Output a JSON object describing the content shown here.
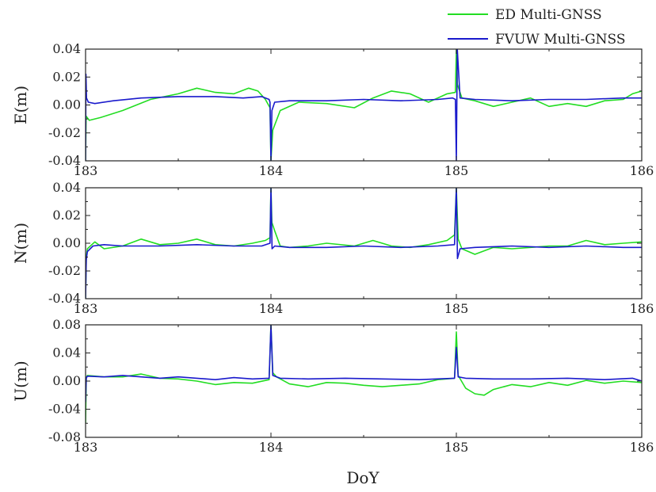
{
  "chart_data": {
    "type": "line",
    "xlabel": "DoY",
    "xlim": [
      183,
      186
    ],
    "xticks": [
      "183",
      "184",
      "185",
      "186"
    ],
    "legend_position": "top-right",
    "legend": [
      {
        "name": "ED Multi-GNSS",
        "color": "#22dd22"
      },
      {
        "name": "FVUW Multi-GNSS",
        "color": "#1a1acc"
      }
    ],
    "panels": [
      {
        "ylabel": "E(m)",
        "ylim": [
          -0.04,
          0.04
        ],
        "yticks": [
          "0.04",
          "0.02",
          "0.00",
          "-0.02",
          "-0.04"
        ],
        "series": [
          {
            "name": "ED Multi-GNSS",
            "color": "#22dd22",
            "x": [
              183.0,
              183.003,
              183.02,
              183.08,
              183.2,
              183.35,
              183.5,
              183.6,
              183.7,
              183.8,
              183.88,
              183.93,
              183.97,
              183.995,
              184.0,
              184.01,
              184.05,
              184.15,
              184.3,
              184.45,
              184.55,
              184.65,
              184.75,
              184.85,
              184.95,
              184.995,
              185.0,
              185.005,
              185.03,
              185.1,
              185.2,
              185.3,
              185.4,
              185.5,
              185.6,
              185.7,
              185.8,
              185.9,
              185.95,
              186.0
            ],
            "y": [
              -0.04,
              -0.008,
              -0.011,
              -0.009,
              -0.004,
              0.004,
              0.008,
              0.012,
              0.009,
              0.008,
              0.012,
              0.01,
              0.004,
              -0.002,
              -0.04,
              -0.018,
              -0.004,
              0.002,
              0.001,
              -0.002,
              0.005,
              0.01,
              0.008,
              0.002,
              0.008,
              0.009,
              0.04,
              0.015,
              0.005,
              0.003,
              -0.001,
              0.002,
              0.005,
              -0.001,
              0.001,
              -0.001,
              0.003,
              0.004,
              0.008,
              0.01
            ]
          },
          {
            "name": "FVUW Multi-GNSS",
            "color": "#1a1acc",
            "x": [
              183.0,
              183.002,
              183.005,
              183.015,
              183.05,
              183.15,
              183.3,
              183.5,
              183.7,
              183.85,
              183.95,
              183.99,
              183.995,
              184.0,
              184.005,
              184.02,
              184.1,
              184.3,
              184.5,
              184.7,
              184.9,
              184.98,
              184.995,
              185.0,
              185.005,
              185.02,
              185.1,
              185.3,
              185.5,
              185.7,
              185.9,
              186.0
            ],
            "y": [
              -0.04,
              0.022,
              0.005,
              0.002,
              0.001,
              0.003,
              0.005,
              0.006,
              0.006,
              0.005,
              0.006,
              0.004,
              0.002,
              -0.04,
              -0.004,
              0.002,
              0.003,
              0.003,
              0.004,
              0.003,
              0.004,
              0.005,
              0.004,
              -0.04,
              0.04,
              0.005,
              0.004,
              0.003,
              0.004,
              0.004,
              0.005,
              0.005
            ]
          }
        ]
      },
      {
        "ylabel": "N(m)",
        "ylim": [
          -0.04,
          0.04
        ],
        "yticks": [
          "0.04",
          "0.02",
          "0.00",
          "-0.02",
          "-0.04"
        ],
        "series": [
          {
            "name": "ED Multi-GNSS",
            "color": "#22dd22",
            "x": [
              183.0,
              183.004,
              183.01,
              183.05,
              183.1,
              183.2,
              183.3,
              183.4,
              183.5,
              183.6,
              183.7,
              183.8,
              183.9,
              183.97,
              183.995,
              184.0,
              184.005,
              184.02,
              184.05,
              184.1,
              184.2,
              184.3,
              184.45,
              184.55,
              184.65,
              184.75,
              184.85,
              184.95,
              184.99,
              185.0,
              185.01,
              185.03,
              185.1,
              185.2,
              185.3,
              185.4,
              185.5,
              185.6,
              185.7,
              185.8,
              185.9,
              186.0
            ],
            "y": [
              -0.04,
              -0.01,
              -0.004,
              0.001,
              -0.004,
              -0.002,
              0.003,
              -0.001,
              0.0,
              0.003,
              -0.001,
              -0.002,
              0.0,
              0.002,
              0.004,
              0.04,
              0.015,
              0.009,
              -0.002,
              -0.003,
              -0.002,
              0.0,
              -0.002,
              0.002,
              -0.002,
              -0.003,
              -0.001,
              0.002,
              0.006,
              0.04,
              0.003,
              -0.004,
              -0.008,
              -0.003,
              -0.004,
              -0.003,
              -0.002,
              -0.002,
              0.002,
              -0.001,
              0.0,
              0.001
            ]
          },
          {
            "name": "FVUW Multi-GNSS",
            "color": "#1a1acc",
            "x": [
              183.0,
              183.004,
              183.01,
              183.04,
              183.1,
              183.2,
              183.4,
              183.6,
              183.8,
              183.95,
              183.995,
              184.0,
              184.006,
              184.02,
              184.1,
              184.3,
              184.5,
              184.7,
              184.9,
              184.99,
              185.0,
              185.006,
              185.02,
              185.1,
              185.3,
              185.5,
              185.7,
              185.9,
              186.0
            ],
            "y": [
              -0.04,
              -0.012,
              -0.006,
              -0.002,
              -0.001,
              -0.002,
              -0.002,
              -0.001,
              -0.002,
              -0.002,
              0.0,
              0.04,
              -0.004,
              -0.002,
              -0.003,
              -0.003,
              -0.002,
              -0.003,
              -0.002,
              -0.001,
              0.04,
              -0.011,
              -0.004,
              -0.003,
              -0.002,
              -0.003,
              -0.002,
              -0.003,
              -0.003
            ]
          }
        ]
      },
      {
        "ylabel": "U(m)",
        "ylim": [
          -0.08,
          0.08
        ],
        "yticks": [
          "0.08",
          "0.04",
          "0.00",
          "-0.04",
          "-0.08"
        ],
        "series": [
          {
            "name": "ED Multi-GNSS",
            "color": "#22dd22",
            "x": [
              183.0,
              183.004,
              183.01,
              183.1,
              183.2,
              183.3,
              183.4,
              183.5,
              183.6,
              183.7,
              183.8,
              183.9,
              183.99,
              184.0,
              184.01,
              184.03,
              184.1,
              184.2,
              184.3,
              184.4,
              184.5,
              184.6,
              184.7,
              184.8,
              184.9,
              184.99,
              185.0,
              185.01,
              185.05,
              185.1,
              185.15,
              185.2,
              185.3,
              185.4,
              185.5,
              185.6,
              185.7,
              185.8,
              185.9,
              186.0
            ],
            "y": [
              -0.06,
              0.005,
              0.008,
              0.006,
              0.006,
              0.01,
              0.004,
              0.003,
              0.0,
              -0.005,
              -0.002,
              -0.003,
              0.002,
              0.08,
              0.012,
              0.006,
              -0.004,
              -0.008,
              -0.002,
              -0.003,
              -0.006,
              -0.008,
              -0.006,
              -0.004,
              0.002,
              0.004,
              0.07,
              0.008,
              -0.01,
              -0.018,
              -0.02,
              -0.012,
              -0.005,
              -0.008,
              -0.002,
              -0.006,
              0.001,
              -0.003,
              0.0,
              -0.002
            ]
          },
          {
            "name": "FVUW Multi-GNSS",
            "color": "#1a1acc",
            "x": [
              183.0,
              183.004,
              183.01,
              183.1,
              183.2,
              183.3,
              183.4,
              183.5,
              183.6,
              183.7,
              183.8,
              183.9,
              183.99,
              184.0,
              184.01,
              184.05,
              184.2,
              184.4,
              184.6,
              184.8,
              184.99,
              185.0,
              185.01,
              185.05,
              185.2,
              185.4,
              185.6,
              185.8,
              185.95,
              186.0
            ],
            "y": [
              -0.03,
              0.004,
              0.007,
              0.006,
              0.008,
              0.006,
              0.004,
              0.006,
              0.004,
              0.002,
              0.005,
              0.003,
              0.004,
              0.08,
              0.008,
              0.004,
              0.003,
              0.004,
              0.003,
              0.002,
              0.004,
              0.048,
              0.006,
              0.004,
              0.003,
              0.003,
              0.004,
              0.002,
              0.004,
              0.0
            ]
          }
        ]
      }
    ]
  }
}
